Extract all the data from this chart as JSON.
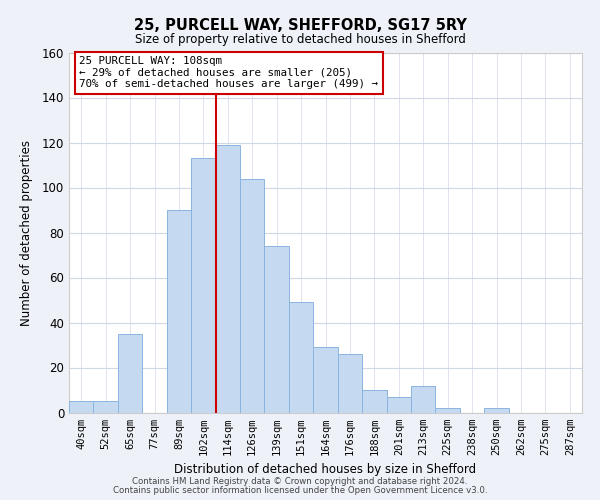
{
  "title_line1": "25, PURCELL WAY, SHEFFORD, SG17 5RY",
  "title_line2": "Size of property relative to detached houses in Shefford",
  "xlabel": "Distribution of detached houses by size in Shefford",
  "ylabel": "Number of detached properties",
  "bar_labels": [
    "40sqm",
    "52sqm",
    "65sqm",
    "77sqm",
    "89sqm",
    "102sqm",
    "114sqm",
    "126sqm",
    "139sqm",
    "151sqm",
    "164sqm",
    "176sqm",
    "188sqm",
    "201sqm",
    "213sqm",
    "225sqm",
    "238sqm",
    "250sqm",
    "262sqm",
    "275sqm",
    "287sqm"
  ],
  "bar_values": [
    5,
    5,
    35,
    0,
    90,
    113,
    119,
    104,
    74,
    49,
    29,
    26,
    10,
    7,
    12,
    2,
    0,
    2,
    0,
    0,
    0
  ],
  "bar_color": "#c5d9f1",
  "bar_edge_color": "#8ab4e0",
  "ylim": [
    0,
    160
  ],
  "yticks": [
    0,
    20,
    40,
    60,
    80,
    100,
    120,
    140,
    160
  ],
  "property_label": "25 PURCELL WAY: 108sqm",
  "annotation_line1": "← 29% of detached houses are smaller (205)",
  "annotation_line2": "70% of semi-detached houses are larger (499) →",
  "vline_color": "#cc0000",
  "footer_line1": "Contains HM Land Registry data © Crown copyright and database right 2024.",
  "footer_line2": "Contains public sector information licensed under the Open Government Licence v3.0.",
  "bg_color": "#eef2f8",
  "plot_bg_color": "#ffffff",
  "grid_color": "#d0d8e8"
}
